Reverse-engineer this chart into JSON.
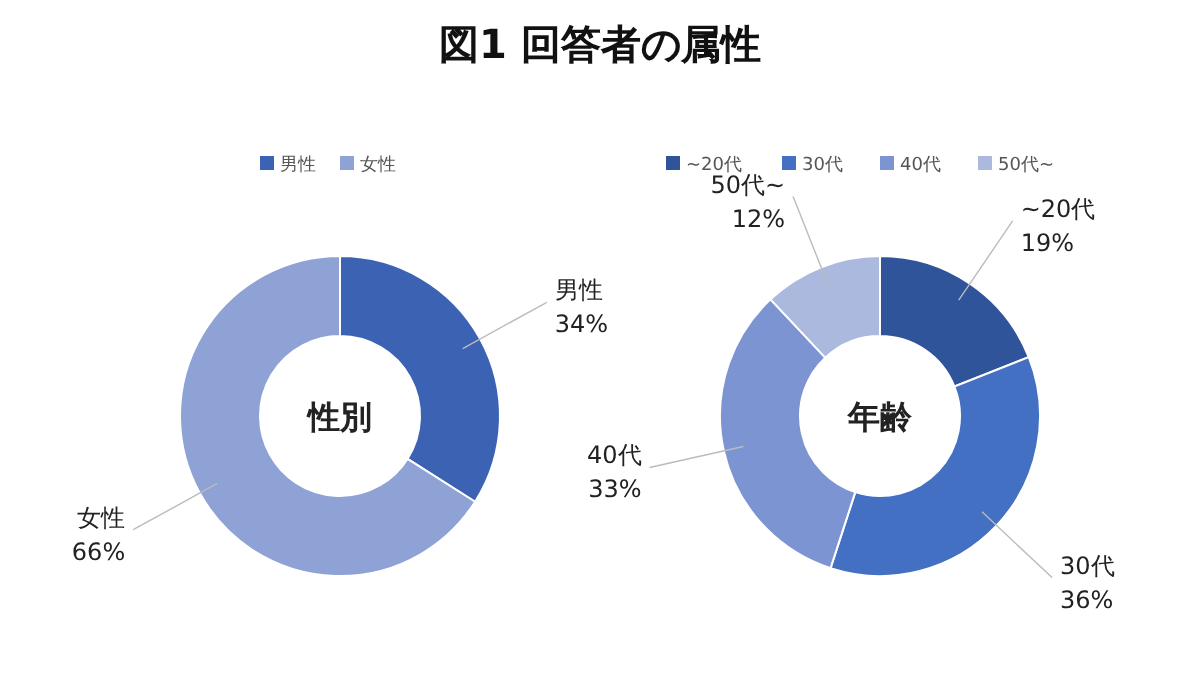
{
  "chart_data": [
    {
      "type": "donut",
      "title": "図1 回答者の属性",
      "categories": [
        "男性",
        "女性"
      ],
      "values": [
        34,
        66
      ],
      "value_labels": [
        "34%",
        "66%"
      ],
      "colors": [
        "#3c63b3",
        "#8fa2d6"
      ],
      "legend": "top",
      "annotations": [
        "性別"
      ]
    },
    {
      "type": "donut",
      "categories": [
        "~20代",
        "30代",
        "40代",
        "50代~"
      ],
      "values": [
        19,
        36,
        33,
        12
      ],
      "value_labels": [
        "19%",
        "36%",
        "33%",
        "12%"
      ],
      "colors": [
        "#30549a",
        "#4470c4",
        "#7c94d1",
        "#abb9df"
      ],
      "legend": "top",
      "annotations": [
        "年齢"
      ]
    }
  ]
}
